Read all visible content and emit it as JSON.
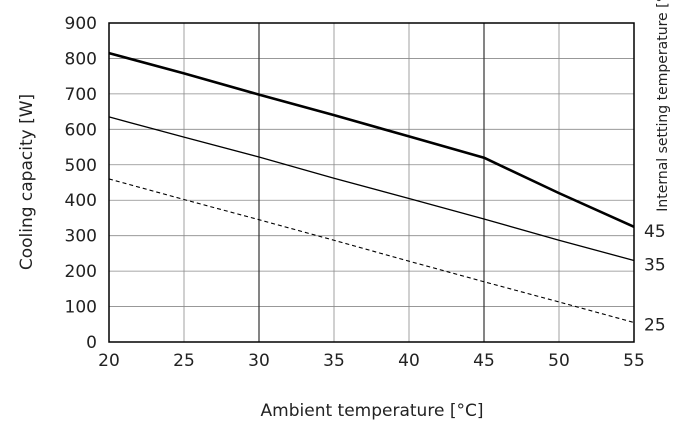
{
  "chart_data": {
    "type": "line",
    "title": "",
    "xlabel": "Ambient temperature [°C]",
    "ylabel": "Cooling capacity [W]",
    "right_label": "Internal setting temperature [°C]",
    "xlim": [
      20,
      55
    ],
    "ylim": [
      0,
      900
    ],
    "xticks": [
      20,
      25,
      30,
      35,
      40,
      45,
      50,
      55
    ],
    "yticks": [
      0,
      100,
      200,
      300,
      400,
      500,
      600,
      700,
      800,
      900
    ],
    "grid": true,
    "series": [
      {
        "name": "45",
        "style": "thick",
        "x": [
          20,
          25,
          30,
          35,
          40,
          45,
          50,
          55
        ],
        "y": [
          815,
          758,
          698,
          640,
          580,
          520,
          420,
          325
        ]
      },
      {
        "name": "35",
        "style": "thin",
        "x": [
          20,
          25,
          30,
          35,
          40,
          45,
          50,
          55
        ],
        "y": [
          635,
          578,
          522,
          462,
          405,
          347,
          287,
          230
        ]
      },
      {
        "name": "25",
        "style": "dashed",
        "x": [
          20,
          25,
          30,
          35,
          40,
          45,
          50,
          55
        ],
        "y": [
          460,
          402,
          345,
          287,
          228,
          170,
          113,
          55
        ]
      }
    ]
  }
}
